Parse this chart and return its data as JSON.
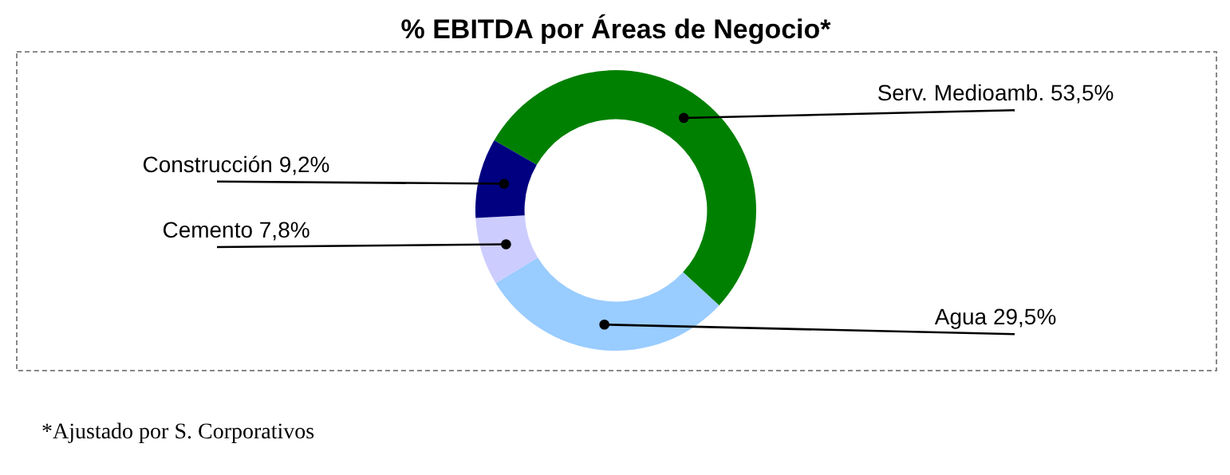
{
  "chart_data": {
    "type": "donut",
    "title": "% EBITDA por Áreas de Negocio*",
    "categories": [
      "Serv. Medioamb.",
      "Agua",
      "Cemento",
      "Construcción"
    ],
    "values": [
      53.5,
      29.5,
      7.8,
      9.2
    ],
    "value_labels": [
      "53,5%",
      "29,5%",
      "7,8%",
      "9,2%"
    ],
    "colors": [
      "#008000",
      "#99ccff",
      "#ccccff",
      "#000080"
    ],
    "legend": false,
    "annotations": [
      "*Ajustado por S. Corporativos"
    ]
  }
}
